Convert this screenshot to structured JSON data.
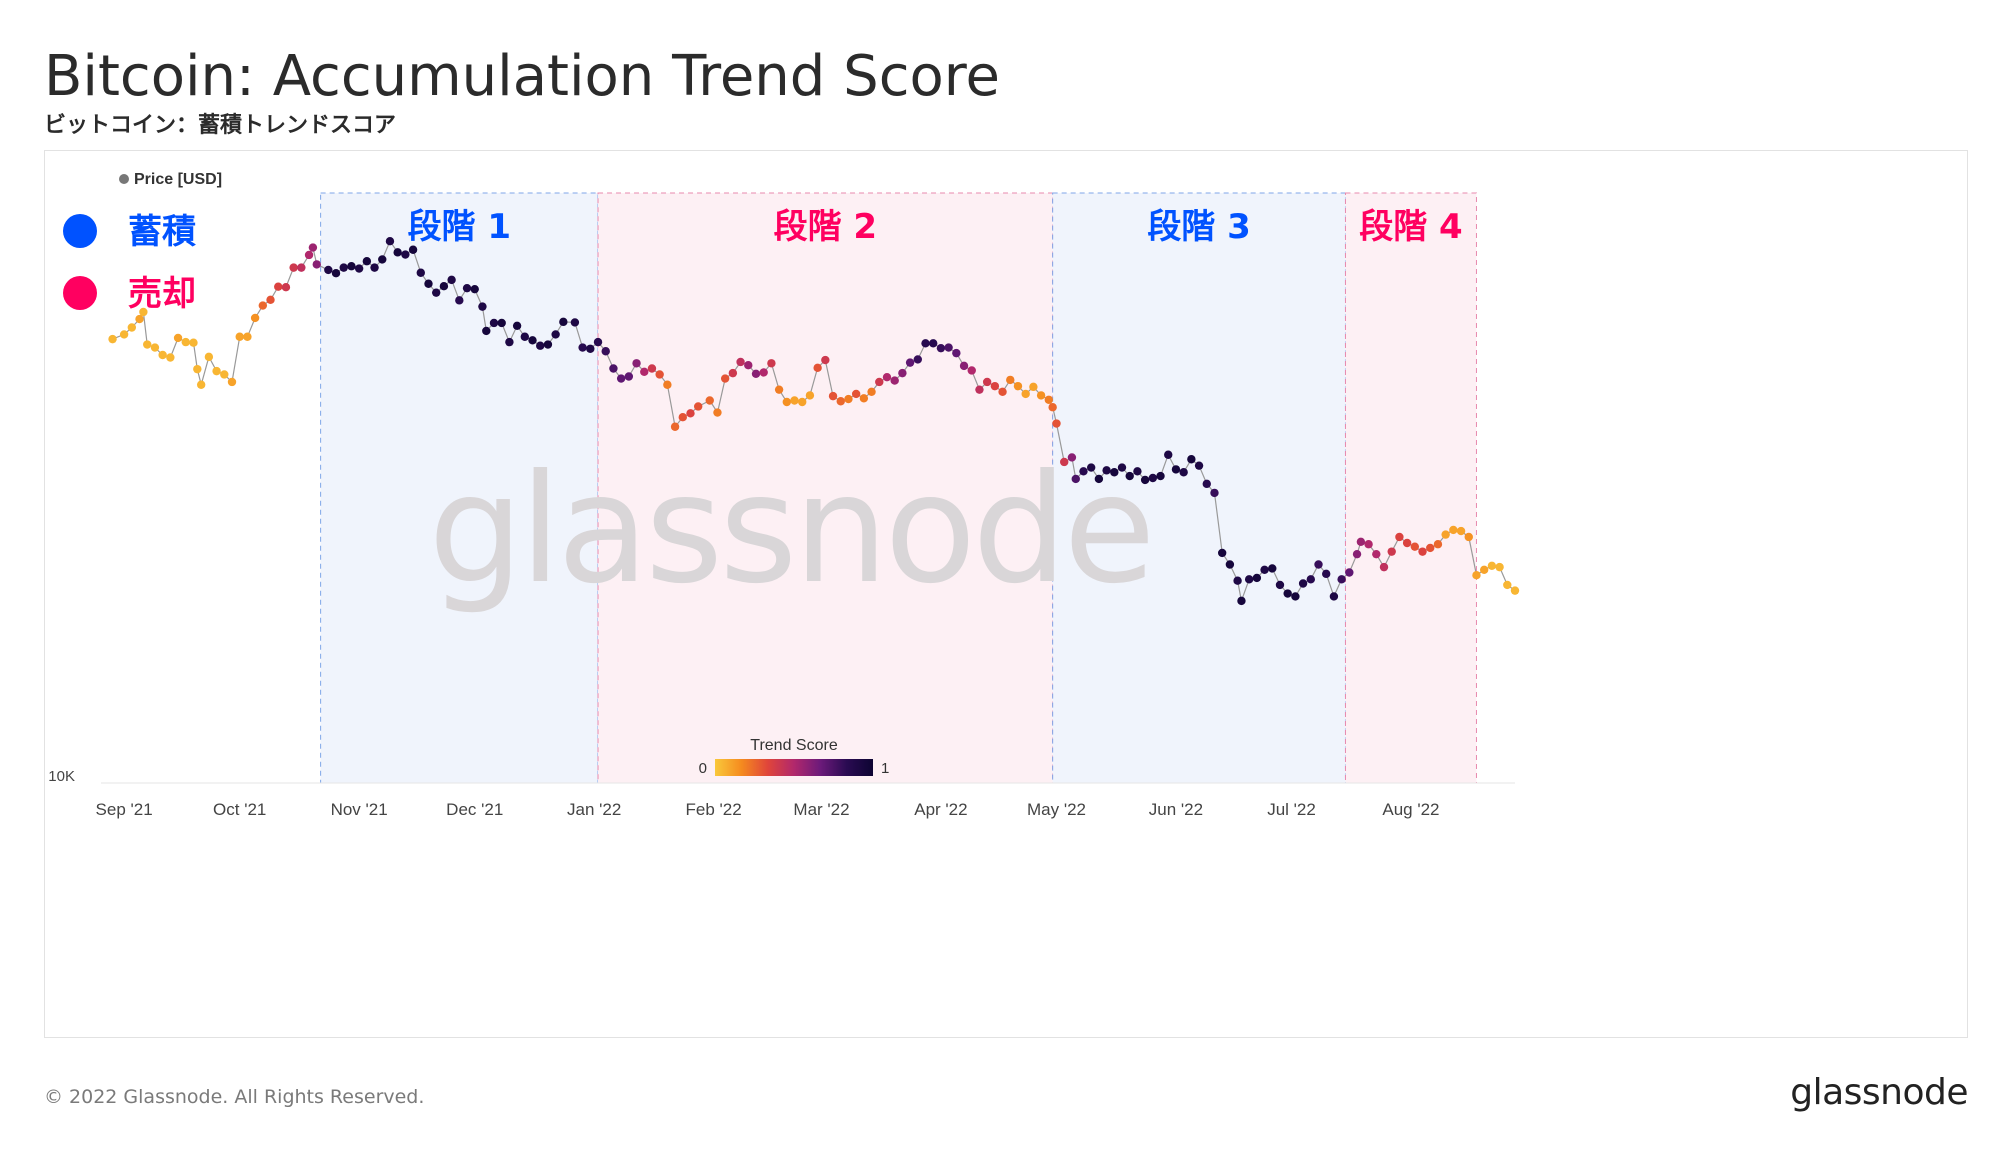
{
  "header": {
    "title": "Bitcoin: Accumulation Trend Score",
    "subtitle": "ビットコイン：蓄積トレンドスコア"
  },
  "footer": {
    "copyright": "© 2022 Glassnode. All Rights Reserved.",
    "logo": "glassnode"
  },
  "chart_data": {
    "type": "scatter",
    "legend_label": "Price [USD]",
    "legend_placement": "top-left",
    "watermark": "glassnode",
    "y_scale": "log",
    "y_ticks": [
      {
        "value": 10000,
        "label": "10K"
      }
    ],
    "ylim": [
      10000,
      80000
    ],
    "x_tick_labels": [
      "Sep '21",
      "Oct '21",
      "Nov '21",
      "Dec '21",
      "Jan '22",
      "Feb '22",
      "Mar '22",
      "Apr '22",
      "May '22",
      "Jun '22",
      "Jul '22",
      "Aug '22"
    ],
    "key": [
      {
        "label": "蓄積",
        "color": "#0052FF"
      },
      {
        "label": "売却",
        "color": "#FF0060"
      }
    ],
    "phases": [
      {
        "label": "段階 1",
        "start": "2021-10-22",
        "end": "2022-01-02",
        "tint": "#F0F4FC",
        "border": "#7FA6E8",
        "text_color": "#0052FF"
      },
      {
        "label": "段階 2",
        "start": "2022-01-02",
        "end": "2022-04-30",
        "tint": "#FDF0F4",
        "border": "#E88AAE",
        "text_color": "#FF0060"
      },
      {
        "label": "段階 3",
        "start": "2022-04-30",
        "end": "2022-07-15",
        "tint": "#F0F4FC",
        "border": "#7FA6E8",
        "text_color": "#0052FF"
      },
      {
        "label": "段階 4",
        "start": "2022-07-15",
        "end": "2022-08-18",
        "tint": "#FDF0F4",
        "border": "#E88AAE",
        "text_color": "#FF0060"
      }
    ],
    "colorbar": {
      "title": "Trend Score",
      "min_label": "0",
      "max_label": "1",
      "colors": [
        "#F9C83B",
        "#F58B1F",
        "#E0453A",
        "#B1286C",
        "#6C1A7A",
        "#2A0B52",
        "#0D0432"
      ]
    },
    "series": [
      {
        "name": "Price [USD]",
        "points": [
          [
            "2021-08-29",
            47800,
            0.05
          ],
          [
            "2021-09-01",
            48600,
            0.05
          ],
          [
            "2021-09-03",
            49800,
            0.05
          ],
          [
            "2021-09-05",
            51300,
            0.1
          ],
          [
            "2021-09-06",
            52600,
            0.05
          ],
          [
            "2021-09-07",
            46900,
            0.05
          ],
          [
            "2021-09-09",
            46400,
            0.05
          ],
          [
            "2021-09-11",
            45200,
            0.05
          ],
          [
            "2021-09-13",
            44800,
            0.05
          ],
          [
            "2021-09-15",
            48000,
            0.1
          ],
          [
            "2021-09-17",
            47300,
            0.05
          ],
          [
            "2021-09-19",
            47200,
            0.05
          ],
          [
            "2021-09-20",
            43000,
            0.05
          ],
          [
            "2021-09-21",
            40700,
            0.05
          ],
          [
            "2021-09-23",
            44900,
            0.05
          ],
          [
            "2021-09-25",
            42700,
            0.05
          ],
          [
            "2021-09-27",
            42200,
            0.05
          ],
          [
            "2021-09-29",
            41100,
            0.1
          ],
          [
            "2021-10-01",
            48200,
            0.1
          ],
          [
            "2021-10-03",
            48200,
            0.1
          ],
          [
            "2021-10-05",
            51500,
            0.15
          ],
          [
            "2021-10-07",
            53800,
            0.25
          ],
          [
            "2021-10-09",
            54900,
            0.3
          ],
          [
            "2021-10-11",
            57500,
            0.35
          ],
          [
            "2021-10-13",
            57400,
            0.4
          ],
          [
            "2021-10-15",
            61500,
            0.4
          ],
          [
            "2021-10-17",
            61500,
            0.45
          ],
          [
            "2021-10-19",
            64300,
            0.5
          ],
          [
            "2021-10-20",
            66000,
            0.55
          ],
          [
            "2021-10-21",
            62200,
            0.6
          ],
          [
            "2021-10-24",
            61000,
            0.9
          ],
          [
            "2021-10-26",
            60300,
            0.95
          ],
          [
            "2021-10-28",
            61500,
            0.9
          ],
          [
            "2021-10-30",
            61800,
            0.95
          ],
          [
            "2021-11-01",
            61300,
            0.9
          ],
          [
            "2021-11-03",
            62900,
            0.95
          ],
          [
            "2021-11-05",
            61500,
            0.9
          ],
          [
            "2021-11-07",
            63300,
            0.95
          ],
          [
            "2021-11-09",
            67500,
            0.9
          ],
          [
            "2021-11-11",
            64900,
            0.95
          ],
          [
            "2021-11-13",
            64400,
            0.9
          ],
          [
            "2021-11-15",
            65500,
            0.95
          ],
          [
            "2021-11-17",
            60400,
            0.9
          ],
          [
            "2021-11-19",
            58100,
            0.95
          ],
          [
            "2021-11-21",
            56300,
            0.9
          ],
          [
            "2021-11-23",
            57600,
            0.95
          ],
          [
            "2021-11-25",
            58900,
            0.9
          ],
          [
            "2021-11-27",
            54800,
            0.85
          ],
          [
            "2021-11-29",
            57200,
            0.9
          ],
          [
            "2021-12-01",
            57000,
            0.95
          ],
          [
            "2021-12-03",
            53600,
            0.9
          ],
          [
            "2021-12-04",
            49200,
            0.95
          ],
          [
            "2021-12-06",
            50600,
            0.9
          ],
          [
            "2021-12-08",
            50600,
            0.95
          ],
          [
            "2021-12-10",
            47300,
            0.9
          ],
          [
            "2021-12-12",
            50100,
            0.95
          ],
          [
            "2021-12-14",
            48200,
            0.9
          ],
          [
            "2021-12-16",
            47600,
            0.95
          ],
          [
            "2021-12-18",
            46700,
            0.9
          ],
          [
            "2021-12-20",
            46900,
            0.95
          ],
          [
            "2021-12-22",
            48600,
            0.9
          ],
          [
            "2021-12-24",
            50800,
            0.95
          ],
          [
            "2021-12-27",
            50700,
            0.9
          ],
          [
            "2021-12-29",
            46400,
            0.85
          ],
          [
            "2021-12-31",
            46200,
            0.9
          ],
          [
            "2022-01-02",
            47300,
            0.85
          ],
          [
            "2022-01-04",
            45800,
            0.8
          ],
          [
            "2022-01-06",
            43100,
            0.75
          ],
          [
            "2022-01-08",
            41600,
            0.7
          ],
          [
            "2022-01-10",
            41900,
            0.7
          ],
          [
            "2022-01-12",
            43900,
            0.6
          ],
          [
            "2022-01-14",
            42600,
            0.5
          ],
          [
            "2022-01-16",
            43100,
            0.4
          ],
          [
            "2022-01-18",
            42200,
            0.3
          ],
          [
            "2022-01-20",
            40700,
            0.2
          ],
          [
            "2022-01-22",
            35100,
            0.25
          ],
          [
            "2022-01-24",
            36300,
            0.3
          ],
          [
            "2022-01-26",
            36800,
            0.35
          ],
          [
            "2022-01-28",
            37700,
            0.3
          ],
          [
            "2022-01-31",
            38500,
            0.25
          ],
          [
            "2022-02-02",
            36900,
            0.2
          ],
          [
            "2022-02-04",
            41600,
            0.3
          ],
          [
            "2022-02-06",
            42400,
            0.4
          ],
          [
            "2022-02-08",
            44100,
            0.45
          ],
          [
            "2022-02-10",
            43600,
            0.55
          ],
          [
            "2022-02-12",
            42300,
            0.6
          ],
          [
            "2022-02-14",
            42500,
            0.5
          ],
          [
            "2022-02-16",
            43900,
            0.4
          ],
          [
            "2022-02-18",
            40000,
            0.2
          ],
          [
            "2022-02-20",
            38300,
            0.15
          ],
          [
            "2022-02-22",
            38500,
            0.1
          ],
          [
            "2022-02-24",
            38300,
            0.1
          ],
          [
            "2022-02-26",
            39200,
            0.1
          ],
          [
            "2022-02-28",
            43200,
            0.3
          ],
          [
            "2022-03-02",
            44400,
            0.4
          ],
          [
            "2022-03-04",
            39100,
            0.3
          ],
          [
            "2022-03-06",
            38400,
            0.25
          ],
          [
            "2022-03-08",
            38700,
            0.2
          ],
          [
            "2022-03-10",
            39400,
            0.3
          ],
          [
            "2022-03-12",
            38800,
            0.2
          ],
          [
            "2022-03-14",
            39700,
            0.2
          ],
          [
            "2022-03-16",
            41100,
            0.4
          ],
          [
            "2022-03-18",
            41800,
            0.5
          ],
          [
            "2022-03-20",
            41300,
            0.55
          ],
          [
            "2022-03-22",
            42400,
            0.6
          ],
          [
            "2022-03-24",
            44000,
            0.7
          ],
          [
            "2022-03-26",
            44500,
            0.8
          ],
          [
            "2022-03-28",
            47100,
            0.85
          ],
          [
            "2022-03-30",
            47100,
            0.85
          ],
          [
            "2022-04-01",
            46300,
            0.8
          ],
          [
            "2022-04-03",
            46400,
            0.75
          ],
          [
            "2022-04-05",
            45500,
            0.7
          ],
          [
            "2022-04-07",
            43500,
            0.6
          ],
          [
            "2022-04-09",
            42800,
            0.5
          ],
          [
            "2022-04-11",
            40000,
            0.45
          ],
          [
            "2022-04-13",
            41100,
            0.4
          ],
          [
            "2022-04-15",
            40500,
            0.35
          ],
          [
            "2022-04-17",
            39700,
            0.3
          ],
          [
            "2022-04-19",
            41400,
            0.2
          ],
          [
            "2022-04-21",
            40500,
            0.15
          ],
          [
            "2022-04-23",
            39400,
            0.1
          ],
          [
            "2022-04-25",
            40400,
            0.1
          ],
          [
            "2022-04-27",
            39200,
            0.15
          ],
          [
            "2022-04-29",
            38600,
            0.2
          ],
          [
            "2022-04-30",
            37600,
            0.25
          ],
          [
            "2022-05-01",
            35500,
            0.3
          ],
          [
            "2022-05-03",
            31000,
            0.4
          ],
          [
            "2022-05-05",
            31500,
            0.6
          ],
          [
            "2022-05-06",
            29200,
            0.75
          ],
          [
            "2022-05-08",
            30000,
            0.85
          ],
          [
            "2022-05-10",
            30400,
            0.9
          ],
          [
            "2022-05-12",
            29200,
            0.95
          ],
          [
            "2022-05-14",
            30100,
            0.9
          ],
          [
            "2022-05-16",
            29900,
            0.95
          ],
          [
            "2022-05-18",
            30400,
            0.9
          ],
          [
            "2022-05-20",
            29500,
            0.95
          ],
          [
            "2022-05-22",
            30000,
            0.9
          ],
          [
            "2022-05-24",
            29100,
            0.95
          ],
          [
            "2022-05-26",
            29300,
            0.9
          ],
          [
            "2022-05-28",
            29500,
            0.95
          ],
          [
            "2022-05-30",
            31800,
            0.9
          ],
          [
            "2022-06-01",
            30200,
            0.95
          ],
          [
            "2022-06-03",
            29900,
            0.9
          ],
          [
            "2022-06-05",
            31300,
            0.95
          ],
          [
            "2022-06-07",
            30600,
            0.9
          ],
          [
            "2022-06-09",
            28700,
            0.85
          ],
          [
            "2022-06-11",
            27800,
            0.8
          ],
          [
            "2022-06-13",
            22500,
            0.95
          ],
          [
            "2022-06-15",
            21600,
            0.95
          ],
          [
            "2022-06-17",
            20400,
            0.9
          ],
          [
            "2022-06-18",
            19000,
            0.95
          ],
          [
            "2022-06-20",
            20500,
            0.9
          ],
          [
            "2022-06-22",
            20600,
            0.95
          ],
          [
            "2022-06-24",
            21200,
            0.9
          ],
          [
            "2022-06-26",
            21300,
            0.95
          ],
          [
            "2022-06-28",
            20100,
            0.9
          ],
          [
            "2022-06-30",
            19500,
            0.95
          ],
          [
            "2022-07-02",
            19300,
            0.95
          ],
          [
            "2022-07-04",
            20200,
            0.9
          ],
          [
            "2022-07-06",
            20500,
            0.85
          ],
          [
            "2022-07-08",
            21600,
            0.8
          ],
          [
            "2022-07-10",
            20900,
            0.85
          ],
          [
            "2022-07-12",
            19300,
            0.9
          ],
          [
            "2022-07-14",
            20500,
            0.8
          ],
          [
            "2022-07-16",
            21000,
            0.7
          ],
          [
            "2022-07-18",
            22400,
            0.6
          ],
          [
            "2022-07-19",
            23400,
            0.55
          ],
          [
            "2022-07-21",
            23200,
            0.5
          ],
          [
            "2022-07-23",
            22400,
            0.5
          ],
          [
            "2022-07-25",
            21400,
            0.45
          ],
          [
            "2022-07-27",
            22600,
            0.4
          ],
          [
            "2022-07-29",
            23800,
            0.35
          ],
          [
            "2022-07-31",
            23300,
            0.35
          ],
          [
            "2022-08-02",
            23000,
            0.3
          ],
          [
            "2022-08-04",
            22600,
            0.35
          ],
          [
            "2022-08-06",
            22900,
            0.3
          ],
          [
            "2022-08-08",
            23200,
            0.25
          ],
          [
            "2022-08-10",
            24000,
            0.1
          ],
          [
            "2022-08-12",
            24400,
            0.1
          ],
          [
            "2022-08-14",
            24300,
            0.1
          ],
          [
            "2022-08-16",
            23800,
            0.15
          ],
          [
            "2022-08-18",
            20800,
            0.1
          ],
          [
            "2022-08-20",
            21200,
            0.1
          ],
          [
            "2022-08-22",
            21500,
            0.05
          ],
          [
            "2022-08-24",
            21400,
            0.05
          ],
          [
            "2022-08-26",
            20100,
            0.05
          ],
          [
            "2022-08-28",
            19700,
            0.05
          ]
        ]
      }
    ]
  }
}
